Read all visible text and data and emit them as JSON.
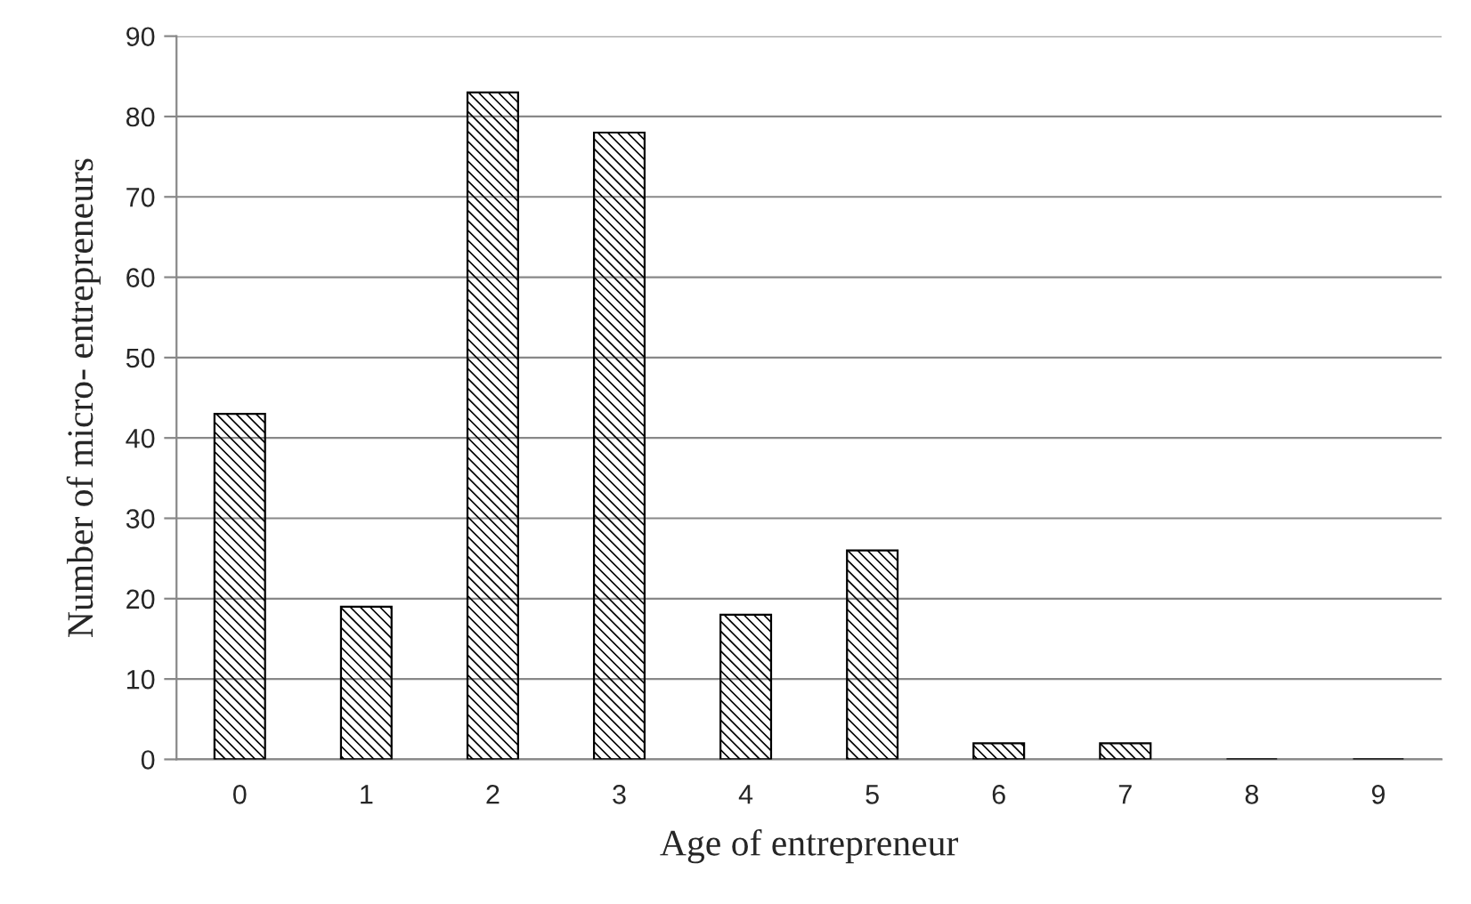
{
  "chart_data": {
    "type": "bar",
    "xlabel": "Age of entrepreneur",
    "ylabel": "Number of micro- entrepreneurs",
    "categories": [
      "0",
      "1",
      "2",
      "3",
      "4",
      "5",
      "6",
      "7",
      "8",
      "9"
    ],
    "values": [
      43,
      19,
      83,
      78,
      18,
      26,
      2,
      2,
      0,
      0
    ],
    "color": "#000000",
    "ylim": [
      0,
      90
    ],
    "yticks": [
      0,
      10,
      20,
      30,
      40,
      50,
      60,
      70,
      80,
      90
    ],
    "grid": "y",
    "legend": false
  }
}
